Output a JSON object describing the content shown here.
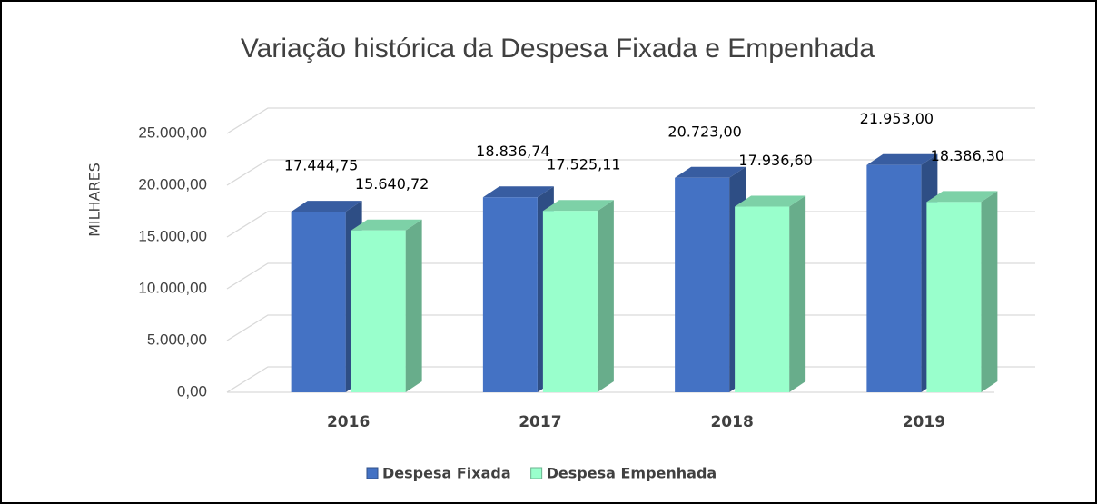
{
  "chart_data": {
    "type": "bar3d",
    "title": "Variação histórica da Despesa Fixada e Empenhada",
    "ylabel": "MILHARES",
    "categories": [
      "2016",
      "2017",
      "2018",
      "2019"
    ],
    "series": [
      {
        "name": "Despesa Fixada",
        "color": "#4472c4",
        "values": [
          17444.75,
          18836.74,
          20723,
          21953
        ],
        "value_labels": [
          "17.444,75",
          "18.836,74",
          "20.723,00",
          "21.953,00"
        ]
      },
      {
        "name": "Despesa Empenhada",
        "color": "#99ffcc",
        "values": [
          15640.72,
          17525.11,
          17936.6,
          18386.3
        ],
        "value_labels": [
          "15.640,72",
          "17.525,11",
          "17.936,60",
          "18.386,30"
        ]
      }
    ],
    "ylim": [
      0,
      25000
    ],
    "yticks": [
      {
        "value": 0,
        "label": "0,00"
      },
      {
        "value": 5000,
        "label": "5.000,00"
      },
      {
        "value": 10000,
        "label": "10.000,00"
      },
      {
        "value": 15000,
        "label": "15.000,00"
      },
      {
        "value": 20000,
        "label": "20.000,00"
      },
      {
        "value": 25000,
        "label": "25.000,00"
      }
    ],
    "grid": true,
    "legend": "bottom"
  }
}
